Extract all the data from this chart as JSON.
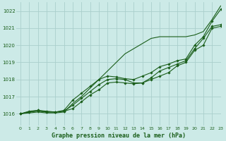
{
  "title": "Graphe pression niveau de la mer (hPa)",
  "xlim": [
    -0.5,
    23
  ],
  "ylim": [
    1015.3,
    1022.5
  ],
  "yticks": [
    1016,
    1017,
    1018,
    1019,
    1020,
    1021,
    1022
  ],
  "xticks": [
    0,
    1,
    2,
    3,
    4,
    5,
    6,
    7,
    8,
    9,
    10,
    11,
    12,
    13,
    14,
    15,
    16,
    17,
    18,
    19,
    20,
    21,
    22,
    23
  ],
  "bg_color": "#cceae7",
  "grid_color": "#aacfcc",
  "line_color": "#1a5e1a",
  "series_with_markers": [
    [
      1016.0,
      1016.1,
      1016.15,
      1016.1,
      1016.1,
      1016.15,
      1016.3,
      1016.7,
      1017.1,
      1017.4,
      1017.8,
      1017.85,
      1017.8,
      1017.75,
      1017.8,
      1018.0,
      1018.2,
      1018.4,
      1018.8,
      1019.0,
      1019.7,
      1020.0,
      1021.0,
      1021.1
    ],
    [
      1016.0,
      1016.1,
      1016.2,
      1016.1,
      1016.1,
      1016.15,
      1016.5,
      1016.9,
      1017.3,
      1017.7,
      1018.0,
      1018.05,
      1018.0,
      1017.8,
      1017.8,
      1018.1,
      1018.5,
      1018.7,
      1018.9,
      1019.1,
      1019.8,
      1020.4,
      1021.1,
      1021.2
    ],
    [
      1016.0,
      1016.15,
      1016.2,
      1016.15,
      1016.1,
      1016.2,
      1016.8,
      1017.2,
      1017.6,
      1018.0,
      1018.2,
      1018.15,
      1018.05,
      1018.0,
      1018.2,
      1018.4,
      1018.75,
      1018.9,
      1019.1,
      1019.2,
      1020.0,
      1020.5,
      1021.4,
      1022.1
    ]
  ],
  "series_no_markers": [
    [
      1016.0,
      1016.05,
      1016.1,
      1016.05,
      1016.05,
      1016.1,
      1016.6,
      1017.0,
      1017.5,
      1018.0,
      1018.5,
      1019.0,
      1019.5,
      1019.8,
      1020.1,
      1020.4,
      1020.5,
      1020.5,
      1020.5,
      1020.5,
      1020.6,
      1020.8,
      1021.5,
      1022.3
    ]
  ]
}
